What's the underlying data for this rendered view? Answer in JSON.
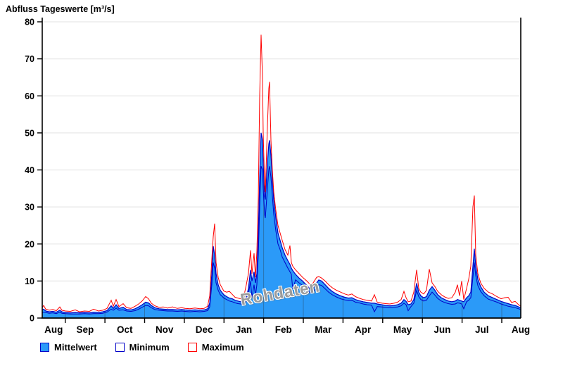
{
  "title": "Abfluss Tageswerte [m³/s]",
  "watermark": "Rohdaten",
  "legend": [
    {
      "label": "Mittelwert",
      "fill": "#2B9AF8",
      "border": "#0000C8"
    },
    {
      "label": "Minimum",
      "fill": "#FFFFFF",
      "border": "#0000C8"
    },
    {
      "label": "Maximum",
      "fill": "#FFFFFF",
      "border": "#FF0000"
    }
  ],
  "colors": {
    "area_fill": "#2B9AF8",
    "mean_line": "#0000C8",
    "min_line": "#0000C8",
    "max_line": "#FF0000",
    "grid": "#ececec",
    "month_divider_on_fill": "rgba(40,40,40,0.35)",
    "axis": "#000000"
  },
  "chart_data": {
    "type": "area",
    "title": "Abfluss Tageswerte [m³/s]",
    "ylabel": "m³/s",
    "ylim": [
      0,
      80
    ],
    "y_ticks": [
      0,
      10,
      20,
      30,
      40,
      50,
      60,
      70,
      80
    ],
    "x_tick_labels": [
      "Aug",
      "Sep",
      "Okt_note_displayed_as_Oct",
      "Nov",
      "Dec",
      "Jan",
      "Feb",
      "Mar",
      "Apr",
      "May",
      "Jun",
      "Jul",
      "Aug"
    ],
    "x_month_labels": [
      "Aug",
      "Sep",
      "Oct",
      "Nov",
      "Dec",
      "Jan",
      "Feb",
      "Mar",
      "Apr",
      "May",
      "Jun",
      "Jul",
      "Aug"
    ],
    "x_span_note": "daily values from mid-August to mid-August of the following year; ticks mark month starts Sep 1 .. Aug 1",
    "grid": "horizontal light gridlines every 10 m³/s",
    "legend_position": "below chart",
    "series_names": [
      "Mittelwert",
      "Minimum",
      "Maximum"
    ],
    "point_format": "[x (0-680 axis units, linear over the year), Mittelwert, Minimum, Maximum] in m³/s",
    "points": [
      [
        0,
        2.2,
        1.4,
        2.8
      ],
      [
        2,
        2.4,
        1.6,
        3.4
      ],
      [
        5,
        1.9,
        1.5,
        2.4
      ],
      [
        10,
        1.7,
        1.3,
        2.1
      ],
      [
        15,
        1.8,
        1.4,
        2.3
      ],
      [
        20,
        1.6,
        1.2,
        2.0
      ],
      [
        25,
        2.1,
        1.6,
        3.0
      ],
      [
        28,
        1.7,
        1.3,
        2.1
      ],
      [
        33,
        1.5,
        1.2,
        1.9
      ],
      [
        40,
        1.4,
        1.1,
        1.8
      ],
      [
        47,
        1.5,
        1.1,
        2.2
      ],
      [
        53,
        1.4,
        1.1,
        1.7
      ],
      [
        60,
        1.5,
        1.2,
        1.9
      ],
      [
        67,
        1.4,
        1.1,
        1.8
      ],
      [
        73,
        1.6,
        1.2,
        2.4
      ],
      [
        80,
        1.5,
        1.2,
        1.9
      ],
      [
        86,
        1.7,
        1.3,
        2.1
      ],
      [
        92,
        2.0,
        1.6,
        2.6
      ],
      [
        98,
        3.3,
        2.4,
        4.8
      ],
      [
        101,
        2.6,
        2.1,
        3.2
      ],
      [
        105,
        3.6,
        2.7,
        5.0
      ],
      [
        109,
        2.6,
        2.1,
        3.1
      ],
      [
        115,
        2.9,
        2.2,
        3.9
      ],
      [
        120,
        2.3,
        1.9,
        2.8
      ],
      [
        126,
        2.2,
        1.8,
        2.6
      ],
      [
        132,
        2.5,
        2.0,
        3.2
      ],
      [
        137,
        3.0,
        2.4,
        3.8
      ],
      [
        142,
        3.6,
        2.9,
        4.6
      ],
      [
        147,
        4.3,
        3.4,
        5.8
      ],
      [
        151,
        4.1,
        3.3,
        5.2
      ],
      [
        155,
        3.4,
        2.8,
        4.0
      ],
      [
        160,
        2.8,
        2.3,
        3.3
      ],
      [
        166,
        2.5,
        2.1,
        2.9
      ],
      [
        172,
        2.4,
        2.0,
        3.0
      ],
      [
        178,
        2.3,
        1.9,
        2.7
      ],
      [
        185,
        2.3,
        1.9,
        3.0
      ],
      [
        192,
        2.2,
        1.8,
        2.6
      ],
      [
        198,
        2.3,
        1.9,
        2.8
      ],
      [
        203,
        2.2,
        1.8,
        2.6
      ],
      [
        210,
        2.1,
        1.7,
        2.5
      ],
      [
        217,
        2.2,
        1.8,
        2.7
      ],
      [
        224,
        2.1,
        1.7,
        2.5
      ],
      [
        230,
        2.2,
        1.8,
        2.6
      ],
      [
        235,
        2.5,
        2.0,
        3.2
      ],
      [
        238,
        4.0,
        3.0,
        6.0
      ],
      [
        241,
        12.0,
        9.0,
        16.0
      ],
      [
        243,
        19.4,
        15.0,
        22.0
      ],
      [
        245,
        17.0,
        13.5,
        25.5
      ],
      [
        247,
        12.0,
        9.5,
        15.0
      ],
      [
        250,
        9.0,
        7.5,
        11.0
      ],
      [
        253,
        7.5,
        6.3,
        9.0
      ],
      [
        256,
        6.8,
        5.8,
        8.0
      ],
      [
        258,
        6.3,
        5.4,
        7.3
      ],
      [
        262,
        5.8,
        5.0,
        7.0
      ],
      [
        266,
        5.4,
        4.6,
        7.2
      ],
      [
        270,
        5.2,
        4.4,
        6.4
      ],
      [
        274,
        4.8,
        4.1,
        5.6
      ],
      [
        278,
        4.6,
        3.9,
        5.4
      ],
      [
        282,
        4.4,
        3.8,
        5.2
      ],
      [
        286,
        4.3,
        3.7,
        5.4
      ],
      [
        290,
        5.5,
        4.5,
        9.0
      ],
      [
        293,
        8.0,
        6.5,
        12.0
      ],
      [
        296,
        13.0,
        10.0,
        18.3
      ],
      [
        298,
        10.0,
        5.5,
        12.0
      ],
      [
        301,
        12.5,
        9.0,
        17.5
      ],
      [
        303,
        9.5,
        6.0,
        11.0
      ],
      [
        305,
        12.0,
        9.0,
        18.0
      ],
      [
        307,
        22.0,
        17.0,
        32.0
      ],
      [
        309,
        38.0,
        30.0,
        60.0
      ],
      [
        311,
        50.0,
        41.0,
        76.5
      ],
      [
        313,
        48.0,
        40.0,
        65.0
      ],
      [
        314,
        42.0,
        35.0,
        50.0
      ],
      [
        316,
        33.0,
        28.0,
        36.0
      ],
      [
        317,
        32.0,
        27.0,
        34.0
      ],
      [
        320,
        42.0,
        35.0,
        52.0
      ],
      [
        322,
        47.0,
        40.0,
        62.0
      ],
      [
        323,
        48.0,
        41.0,
        63.8
      ],
      [
        325,
        44.0,
        38.0,
        48.0
      ],
      [
        327,
        38.0,
        33.0,
        40.0
      ],
      [
        329,
        32.0,
        28.0,
        34.0
      ],
      [
        332,
        27.0,
        23.5,
        29.0
      ],
      [
        335,
        23.0,
        20.0,
        25.0
      ],
      [
        338,
        21.0,
        18.5,
        23.0
      ],
      [
        341,
        19.0,
        16.5,
        21.0
      ],
      [
        345,
        17.0,
        15.0,
        18.5
      ],
      [
        349,
        15.5,
        13.5,
        17.0
      ],
      [
        352,
        14.5,
        12.5,
        19.6
      ],
      [
        354,
        13.5,
        11.8,
        15.0
      ],
      [
        356,
        12.8,
        7.8,
        14.0
      ],
      [
        360,
        11.8,
        10.3,
        13.0
      ],
      [
        365,
        10.8,
        9.5,
        12.0
      ],
      [
        370,
        10.0,
        8.8,
        11.0
      ],
      [
        376,
        8.8,
        7.7,
        10.0
      ],
      [
        381,
        7.8,
        6.8,
        9.0
      ],
      [
        385,
        8.0,
        7.0,
        9.5
      ],
      [
        390,
        9.5,
        8.3,
        11.0
      ],
      [
        393,
        10.3,
        9.0,
        11.2
      ],
      [
        397,
        10.0,
        8.8,
        10.8
      ],
      [
        402,
        9.0,
        7.9,
        10.0
      ],
      [
        407,
        8.0,
        7.0,
        9.0
      ],
      [
        412,
        7.2,
        6.3,
        8.2
      ],
      [
        418,
        6.5,
        5.7,
        7.5
      ],
      [
        424,
        6.0,
        5.2,
        7.0
      ],
      [
        430,
        5.6,
        4.9,
        6.5
      ],
      [
        435,
        5.4,
        4.7,
        6.2
      ],
      [
        440,
        5.5,
        4.8,
        6.5
      ],
      [
        445,
        5.0,
        4.3,
        5.8
      ],
      [
        450,
        4.7,
        4.1,
        5.4
      ],
      [
        456,
        4.4,
        3.8,
        5.0
      ],
      [
        462,
        4.2,
        3.6,
        4.8
      ],
      [
        468,
        4.0,
        3.5,
        4.6
      ],
      [
        472,
        4.0,
        1.7,
        6.3
      ],
      [
        476,
        3.8,
        3.1,
        4.3
      ],
      [
        483,
        3.6,
        3.0,
        4.0
      ],
      [
        488,
        3.4,
        2.9,
        3.9
      ],
      [
        494,
        3.3,
        2.8,
        3.8
      ],
      [
        500,
        3.4,
        2.9,
        4.0
      ],
      [
        505,
        3.6,
        3.0,
        4.3
      ],
      [
        510,
        4.0,
        3.3,
        5.0
      ],
      [
        514,
        5.0,
        4.0,
        7.2
      ],
      [
        517,
        4.5,
        3.6,
        5.5
      ],
      [
        520,
        3.6,
        2.0,
        4.4
      ],
      [
        524,
        3.8,
        3.1,
        4.6
      ],
      [
        528,
        5.0,
        4.0,
        7.0
      ],
      [
        532,
        9.4,
        7.5,
        13.0
      ],
      [
        535,
        7.0,
        5.8,
        8.0
      ],
      [
        538,
        6.0,
        5.0,
        7.0
      ],
      [
        542,
        5.5,
        4.6,
        6.5
      ],
      [
        546,
        5.8,
        4.8,
        7.5
      ],
      [
        550,
        7.5,
        6.0,
        13.2
      ],
      [
        554,
        8.5,
        7.0,
        9.5
      ],
      [
        558,
        7.5,
        6.2,
        8.5
      ],
      [
        562,
        6.3,
        5.3,
        7.2
      ],
      [
        567,
        5.5,
        4.6,
        6.3
      ],
      [
        572,
        5.0,
        4.2,
        5.7
      ],
      [
        577,
        4.6,
        3.9,
        5.3
      ],
      [
        582,
        4.4,
        3.7,
        5.5
      ],
      [
        587,
        4.6,
        3.8,
        7.0
      ],
      [
        590,
        5.0,
        4.1,
        9.0
      ],
      [
        593,
        4.8,
        4.0,
        6.0
      ],
      [
        596,
        4.6,
        3.8,
        10.0
      ],
      [
        599,
        4.4,
        2.5,
        5.0
      ],
      [
        603,
        5.5,
        4.4,
        8.0
      ],
      [
        606,
        6.0,
        4.8,
        10.5
      ],
      [
        609,
        7.0,
        5.5,
        14.0
      ],
      [
        612,
        14.0,
        11.0,
        30.0
      ],
      [
        614,
        18.7,
        15.0,
        33.1
      ],
      [
        616,
        14.0,
        11.5,
        17.0
      ],
      [
        619,
        10.5,
        8.8,
        12.0
      ],
      [
        623,
        8.5,
        7.2,
        9.5
      ],
      [
        628,
        7.0,
        6.0,
        8.0
      ],
      [
        634,
        6.0,
        5.1,
        7.0
      ],
      [
        640,
        5.5,
        4.7,
        6.5
      ],
      [
        646,
        5.0,
        4.3,
        5.8
      ],
      [
        652,
        4.5,
        3.8,
        5.2
      ],
      [
        657,
        4.2,
        3.5,
        5.5
      ],
      [
        662,
        3.9,
        3.2,
        5.6
      ],
      [
        667,
        3.6,
        3.0,
        4.2
      ],
      [
        672,
        3.4,
        2.8,
        4.5
      ],
      [
        677,
        3.0,
        2.5,
        3.6
      ],
      [
        680,
        2.8,
        2.3,
        3.2
      ]
    ]
  }
}
